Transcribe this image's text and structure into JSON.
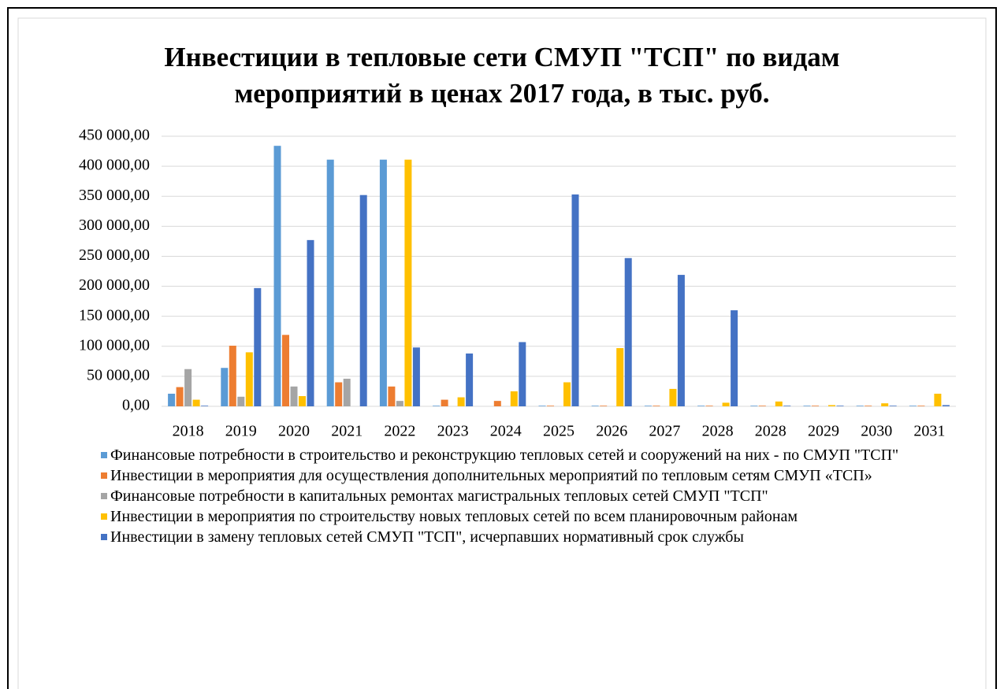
{
  "chart_data": {
    "type": "bar",
    "title": "Инвестиции в тепловые сети СМУП \"ТСП\" по видам мероприятий в ценах 2017 года, в тыс. руб.",
    "categories": [
      "2018",
      "2019",
      "2020",
      "2021",
      "2022",
      "2023",
      "2024",
      "2025",
      "2026",
      "2027",
      "2028",
      "2028",
      "2029",
      "2030",
      "2031"
    ],
    "series": [
      {
        "name": " Финансовые потребности в строительство и реконструкцию  тепловых сетей и сооружений на них - по СМУП \"ТСП\"",
        "color": "#5b9bd5",
        "values": [
          21000,
          64000,
          434000,
          411000,
          411000,
          1000,
          0,
          1000,
          1000,
          1000,
          1000,
          1000,
          1000,
          1000,
          1000
        ]
      },
      {
        "name": "Инвестиции в мероприятия  для осуществления дополнительных мероприятий по тепловым сетям СМУП «ТСП»",
        "color": "#ed7d31",
        "values": [
          32000,
          101000,
          119000,
          40000,
          33000,
          11000,
          9000,
          1000,
          1000,
          1000,
          1000,
          1000,
          1000,
          1000,
          1000
        ]
      },
      {
        "name": "Финансовые потребности в капитальных ремонтах магистральных тепловых сетей СМУП \"ТСП\"",
        "color": "#a5a5a5",
        "values": [
          62000,
          16000,
          33000,
          46000,
          9000,
          0,
          0,
          0,
          0,
          0,
          0,
          0,
          0,
          0,
          0
        ]
      },
      {
        "name": "Инвестиции в мероприятия по строительству новых тепловых сетей по всем планировочным районам",
        "color": "#ffc000",
        "values": [
          11000,
          90000,
          17000,
          0,
          411000,
          15000,
          25000,
          40000,
          97000,
          29000,
          6000,
          8000,
          2000,
          5000,
          21000
        ]
      },
      {
        "name": "Инвестиции в замену тепловых сетей СМУП \"ТСП\", исчерпавших нормативный срок службы",
        "color": "#4472c4",
        "values": [
          1000,
          197000,
          277000,
          352000,
          98000,
          88000,
          107000,
          353000,
          247000,
          219000,
          160000,
          1000,
          1000,
          1000,
          2000
        ]
      }
    ],
    "ylim": [
      0,
      450000
    ],
    "yticks": [
      {
        "value": 0,
        "label": "0,00"
      },
      {
        "value": 50000,
        "label": "50 000,00"
      },
      {
        "value": 100000,
        "label": "100 000,00"
      },
      {
        "value": 150000,
        "label": "150 000,00"
      },
      {
        "value": 200000,
        "label": "200 000,00"
      },
      {
        "value": 250000,
        "label": "250 000,00"
      },
      {
        "value": 300000,
        "label": "300 000,00"
      },
      {
        "value": 350000,
        "label": "350 000,00"
      },
      {
        "value": 400000,
        "label": "400 000,00"
      },
      {
        "value": 450000,
        "label": "450 000,00"
      }
    ],
    "grid": true,
    "legend": "bottom"
  }
}
